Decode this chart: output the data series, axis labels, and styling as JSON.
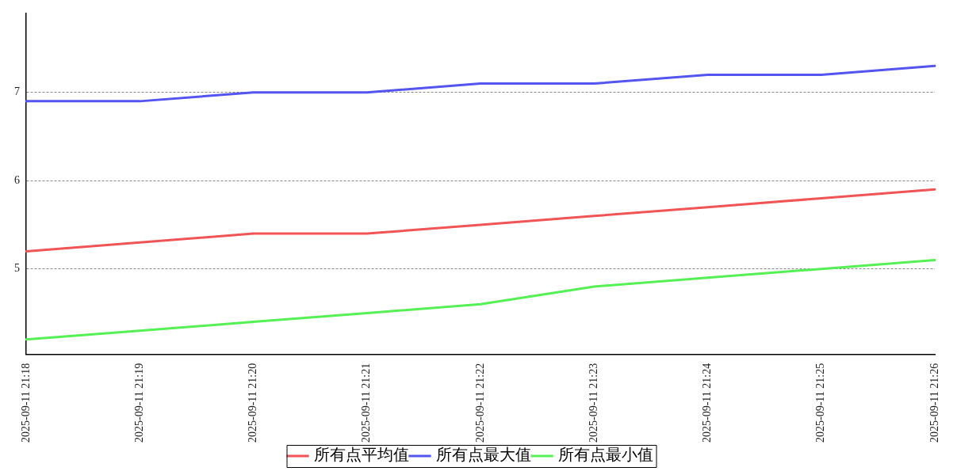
{
  "chart_data": {
    "type": "line",
    "categories": [
      "2025-09-11 21:18",
      "2025-09-11 21:19",
      "2025-09-11 21:20",
      "2025-09-11 21:21",
      "2025-09-11 21:22",
      "2025-09-11 21:23",
      "2025-09-11 21:24",
      "2025-09-11 21:25",
      "2025-09-11 21:26"
    ],
    "series": [
      {
        "name": "所有点平均值",
        "color": "#f05454",
        "values": [
          5.2,
          5.3,
          5.4,
          5.4,
          5.5,
          5.6,
          5.7,
          5.8,
          5.9
        ]
      },
      {
        "name": "所有点最大值",
        "color": "#5454f0",
        "values": [
          6.9,
          6.9,
          7.0,
          7.0,
          7.1,
          7.1,
          7.2,
          7.2,
          7.3
        ]
      },
      {
        "name": "所有点最小值",
        "color": "#54f054",
        "values": [
          4.2,
          4.3,
          4.4,
          4.5,
          4.6,
          4.8,
          4.9,
          5.0,
          5.1
        ]
      }
    ],
    "ylim": [
      4.03,
      7.9
    ],
    "yticks": [
      5,
      6,
      7
    ],
    "grid": "y",
    "legend": "bottom",
    "marker": "none",
    "line_style": "solid"
  }
}
